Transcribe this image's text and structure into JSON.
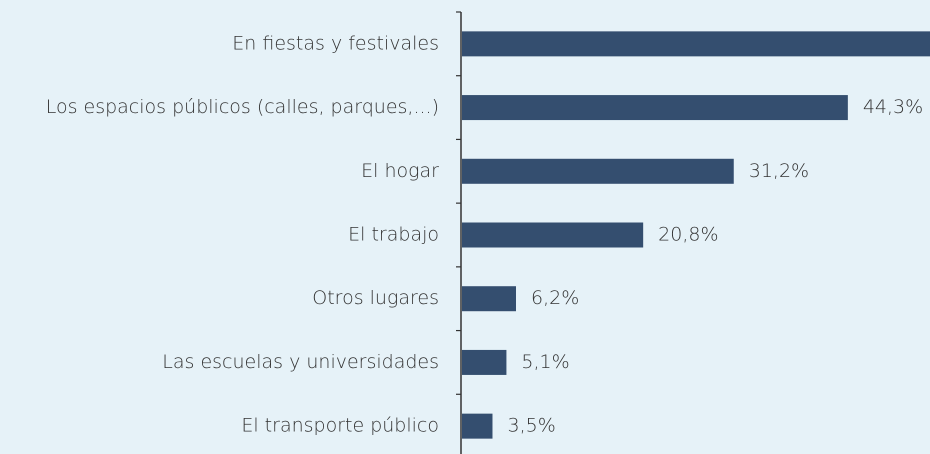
{
  "chart_data": {
    "type": "bar",
    "orientation": "horizontal",
    "categories": [
      "En fiestas y festivales",
      "Los espacios públicos (calles, parques,...)",
      "El hogar",
      "El trabajo",
      "Otros lugares",
      "Las escuelas y universidades",
      "El transporte público"
    ],
    "values": [
      56,
      44.3,
      31.2,
      20.8,
      6.2,
      5.1,
      3.5
    ],
    "value_labels": [
      null,
      "44,3%",
      "31,2%",
      "20,8%",
      "6,2%",
      "5,1%",
      "3,5%"
    ],
    "color": "#344e6f"
  }
}
